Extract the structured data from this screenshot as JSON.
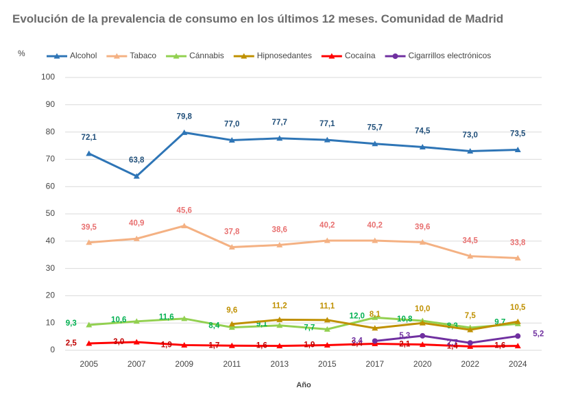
{
  "chart_data": {
    "type": "line",
    "title": "Evolución de la prevalencia de consumo en los últimos 12 meses. Comunidad de Madrid",
    "y_axis_label": "%",
    "x_axis_label": "Año",
    "categories": [
      "2005",
      "2007",
      "2009",
      "2011",
      "2013",
      "2015",
      "2017",
      "2020",
      "2022",
      "2024"
    ],
    "ylim": [
      0,
      100
    ],
    "yticks": [
      0,
      10,
      20,
      30,
      40,
      50,
      60,
      70,
      80,
      90,
      100
    ],
    "grid": true,
    "legend": "top",
    "series": [
      {
        "name": "Alcohol",
        "color": "#2e75b6",
        "label_color": "#1f4e79",
        "marker": "triangle",
        "values": [
          72.1,
          63.8,
          79.8,
          77.0,
          77.7,
          77.1,
          75.7,
          74.5,
          73.0,
          73.5
        ],
        "value_labels": [
          "72,1",
          "63,8",
          "79,8",
          "77,0",
          "77,7",
          "77,1",
          "75,7",
          "74,5",
          "73,0",
          "73,5"
        ]
      },
      {
        "name": "Tabaco",
        "color": "#f4b183",
        "label_color": "#e87070",
        "marker": "triangle",
        "values": [
          39.5,
          40.9,
          45.6,
          37.8,
          38.6,
          40.2,
          40.2,
          39.6,
          34.5,
          33.8
        ],
        "value_labels": [
          "39,5",
          "40,9",
          "45,6",
          "37,8",
          "38,6",
          "40,2",
          "40,2",
          "39,6",
          "34,5",
          "33,8"
        ]
      },
      {
        "name": "Cánnabis",
        "color": "#92d050",
        "label_color": "#00b050",
        "marker": "triangle",
        "values": [
          9.3,
          10.6,
          11.6,
          8.4,
          9.1,
          7.7,
          12.0,
          10.8,
          8.3,
          9.7
        ],
        "value_labels": [
          "9,3",
          "10,6",
          "11,6",
          "8,4",
          "9,1",
          "7,7",
          "12,0",
          "10,8",
          "8,3",
          "9,7"
        ]
      },
      {
        "name": "Hipnosedantes",
        "color": "#bf9000",
        "label_color": "#bf9000",
        "marker": "triangle",
        "values": [
          null,
          null,
          null,
          9.6,
          11.2,
          11.1,
          8.1,
          10.0,
          7.5,
          10.5
        ],
        "value_labels": [
          null,
          null,
          null,
          "9,6",
          "11,2",
          "11,1",
          "8,1",
          "10,0",
          "7,5",
          "10,5"
        ]
      },
      {
        "name": "Cocaína",
        "color": "#ff0000",
        "label_color": "#c00000",
        "marker": "triangle",
        "values": [
          2.5,
          3.0,
          1.9,
          1.7,
          1.6,
          1.9,
          2.4,
          2.1,
          1.4,
          1.6
        ],
        "value_labels": [
          "2,5",
          "3,0",
          "1,9",
          "1,7",
          "1,6",
          "1,9",
          "2,4",
          "2,1",
          "1,4",
          "1,6"
        ]
      },
      {
        "name": "Cigarrillos electrónicos",
        "color": "#7030a0",
        "label_color": "#7030a0",
        "marker": "circle",
        "values": [
          null,
          null,
          null,
          null,
          null,
          null,
          3.4,
          5.3,
          2.7,
          5.2
        ],
        "value_labels": [
          null,
          null,
          null,
          null,
          null,
          null,
          "3,4",
          "5,3",
          "2,7",
          "5,2"
        ]
      }
    ]
  }
}
